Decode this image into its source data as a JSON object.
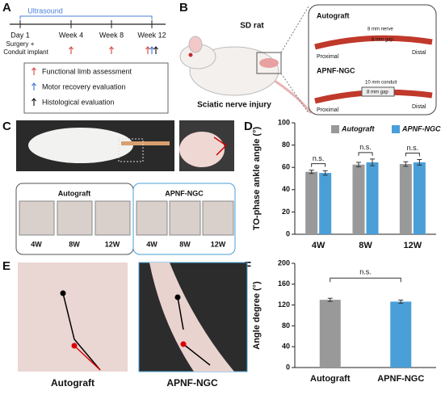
{
  "panel_labels": [
    "A",
    "B",
    "C",
    "D",
    "E",
    "F"
  ],
  "timeline": {
    "bracket_label": "Ultrasound",
    "points": [
      "Day 1",
      "Week 4",
      "Week 8",
      "Week 12"
    ],
    "day1_note": [
      "Surgery +",
      "Conduit implant"
    ],
    "legend": [
      "Functional limb assessment",
      "Motor recovery evaluation",
      "Histological evaluation"
    ],
    "arrow_colors": [
      "#d9534f",
      "#4a7fd8",
      "#222222"
    ]
  },
  "illustration": {
    "title": "SD rat",
    "injury": "Sciatic nerve injury",
    "proximal": "Proximal",
    "distal": "Distal",
    "groups": [
      {
        "name": "Autograft",
        "labels": [
          "8 mm nerve",
          "8 mm gap"
        ]
      },
      {
        "name": "APNF-NGC",
        "labels": [
          "10 mm conduit",
          "8 mm gap"
        ]
      }
    ]
  },
  "gait": {
    "groups": [
      "Autograft",
      "APNF-NGC"
    ],
    "timepoints": [
      "4W",
      "8W",
      "12W"
    ]
  },
  "photos": {
    "labels": [
      "Autograft",
      "APNF-NGC"
    ]
  },
  "chart_data": [
    {
      "type": "bar",
      "y_label": "TO-phase ankle angle (°)",
      "categories": [
        "4W",
        "8W",
        "12W"
      ],
      "series": [
        {
          "name": "Autograft",
          "color": "#999999",
          "values": [
            56,
            62.5,
            63
          ],
          "errors": [
            1.5,
            2,
            2
          ]
        },
        {
          "name": "APNF-NGC",
          "color": "#4a9fd8",
          "values": [
            55,
            64.5,
            64.5
          ],
          "errors": [
            2,
            3,
            2.5
          ]
        }
      ],
      "ylim": [
        0,
        100
      ],
      "yticks": [
        0,
        20,
        40,
        60,
        80,
        100
      ],
      "annotations": [
        "n.s.",
        "n.s.",
        "n.s."
      ],
      "legend": "top"
    },
    {
      "type": "bar",
      "y_label": "Angle degree (°)",
      "categories": [
        "Autograft",
        "APNF-NGC"
      ],
      "values": [
        130,
        126.5
      ],
      "errors": [
        3,
        3
      ],
      "colors": [
        "#999999",
        "#4a9fd8"
      ],
      "ylim": [
        0,
        200
      ],
      "yticks": [
        0,
        40,
        80,
        120,
        160,
        200
      ],
      "annotations": [
        "n.s."
      ]
    }
  ]
}
